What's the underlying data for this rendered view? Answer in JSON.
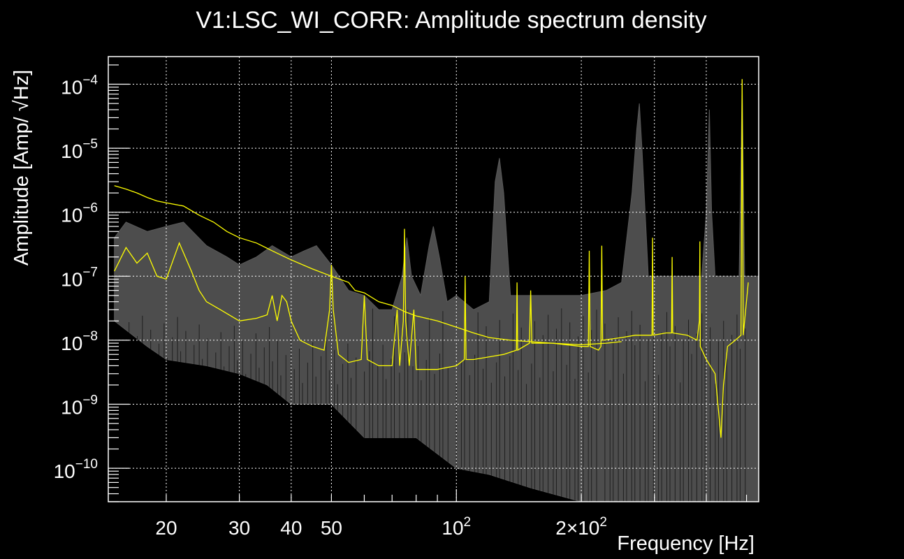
{
  "chart_data": {
    "type": "line",
    "title": "V1:LSC_WI_CORR: Amplitude spectrum density",
    "xlabel": "Frequency [Hz]",
    "ylabel": "Amplitude [Amp/ √Hz]",
    "xscale": "log",
    "yscale": "log",
    "xlim": [
      14.5,
      535
    ],
    "ylim": [
      3e-11,
      0.00027
    ],
    "grid": true,
    "background": "#000000",
    "xticks": [
      {
        "value": 20,
        "label": "20",
        "exp": ""
      },
      {
        "value": 30,
        "label": "30",
        "exp": ""
      },
      {
        "value": 40,
        "label": "40",
        "exp": ""
      },
      {
        "value": 50,
        "label": "50",
        "exp": ""
      },
      {
        "value": 100,
        "label": "10",
        "exp": "2"
      },
      {
        "value": 200,
        "label": "2×10",
        "exp": "2"
      }
    ],
    "yticks": [
      {
        "value": 0.0001,
        "label": "10",
        "exp": "−4"
      },
      {
        "value": 1e-05,
        "label": "10",
        "exp": "−5"
      },
      {
        "value": 1e-06,
        "label": "10",
        "exp": "−6"
      },
      {
        "value": 1e-07,
        "label": "10",
        "exp": "−7"
      },
      {
        "value": 1e-08,
        "label": "10",
        "exp": "−8"
      },
      {
        "value": 1e-09,
        "label": "10",
        "exp": "−9"
      },
      {
        "value": 1e-10,
        "label": "10",
        "exp": "−10"
      }
    ],
    "history_band": {
      "color": "#4d4d4d",
      "upper": [
        [
          15,
          4e-07
        ],
        [
          16,
          7e-07
        ],
        [
          18,
          5e-07
        ],
        [
          20,
          6e-07
        ],
        [
          22,
          7e-07
        ],
        [
          25,
          3e-07
        ],
        [
          28,
          2e-07
        ],
        [
          30,
          1.5e-07
        ],
        [
          33,
          2e-07
        ],
        [
          36,
          3e-07
        ],
        [
          40,
          2e-07
        ],
        [
          43,
          2.5e-07
        ],
        [
          46,
          3e-07
        ],
        [
          50,
          1.5e-07
        ],
        [
          55,
          6e-08
        ],
        [
          60,
          5e-08
        ],
        [
          65,
          3e-08
        ],
        [
          70,
          3e-08
        ],
        [
          74,
          1e-07
        ],
        [
          76,
          4e-07
        ],
        [
          78,
          1e-07
        ],
        [
          82,
          5e-08
        ],
        [
          86,
          3e-07
        ],
        [
          88,
          6e-07
        ],
        [
          91,
          2e-07
        ],
        [
          95,
          4e-08
        ],
        [
          100,
          5e-08
        ],
        [
          110,
          3e-08
        ],
        [
          120,
          4e-08
        ],
        [
          124,
          3e-06
        ],
        [
          127,
          7e-06
        ],
        [
          130,
          2e-06
        ],
        [
          135,
          5e-08
        ],
        [
          150,
          5e-08
        ],
        [
          180,
          5e-08
        ],
        [
          200,
          5e-08
        ],
        [
          230,
          6e-08
        ],
        [
          250,
          8e-08
        ],
        [
          265,
          2e-06
        ],
        [
          272,
          2e-05
        ],
        [
          276,
          5e-05
        ],
        [
          280,
          1e-05
        ],
        [
          290,
          1e-07
        ],
        [
          350,
          1e-07
        ],
        [
          390,
          1e-07
        ],
        [
          400,
          1e-06
        ],
        [
          407,
          4e-05
        ],
        [
          412,
          1e-06
        ],
        [
          420,
          1e-07
        ],
        [
          450,
          1e-07
        ],
        [
          480,
          1e-07
        ],
        [
          488,
          0.00012
        ],
        [
          495,
          1e-07
        ],
        [
          520,
          1e-07
        ],
        [
          535,
          1e-07
        ]
      ],
      "lower": [
        [
          15,
          2e-08
        ],
        [
          18,
          8e-09
        ],
        [
          20,
          5e-09
        ],
        [
          25,
          4e-09
        ],
        [
          30,
          3e-09
        ],
        [
          35,
          2e-09
        ],
        [
          40,
          1e-09
        ],
        [
          50,
          1e-09
        ],
        [
          60,
          3e-10
        ],
        [
          80,
          3e-10
        ],
        [
          100,
          1e-10
        ],
        [
          120,
          8e-11
        ],
        [
          150,
          5e-11
        ],
        [
          200,
          3e-11
        ],
        [
          535,
          3e-11
        ]
      ]
    },
    "reference_trace": {
      "color": "#ffff00",
      "points": [
        [
          15,
          2.6e-06
        ],
        [
          16,
          2.3e-06
        ],
        [
          17,
          2e-06
        ],
        [
          18,
          1.7e-06
        ],
        [
          19,
          1.5e-06
        ],
        [
          20,
          1.4e-06
        ],
        [
          22,
          1.25e-06
        ],
        [
          24,
          9e-07
        ],
        [
          26,
          7e-07
        ],
        [
          28,
          5e-07
        ],
        [
          30,
          4e-07
        ],
        [
          33,
          3.3e-07
        ],
        [
          36,
          2.5e-07
        ],
        [
          40,
          1.8e-07
        ],
        [
          45,
          1.3e-07
        ],
        [
          50,
          1e-07
        ],
        [
          55,
          8e-08
        ],
        [
          57,
          6e-08
        ],
        [
          60,
          5.5e-08
        ],
        [
          65,
          4e-08
        ],
        [
          70,
          3.5e-08
        ],
        [
          75,
          2.8e-08
        ],
        [
          80,
          2.4e-08
        ],
        [
          90,
          2e-08
        ],
        [
          100,
          1.6e-08
        ],
        [
          110,
          1.3e-08
        ],
        [
          120,
          1.1e-08
        ],
        [
          135,
          1e-08
        ],
        [
          150,
          9.5e-09
        ],
        [
          170,
          9e-09
        ],
        [
          200,
          8.5e-09
        ],
        [
          230,
          9e-09
        ],
        [
          250,
          9.5e-09
        ]
      ]
    },
    "current_trace": {
      "color": "#ffff00",
      "points": [
        [
          15,
          1.2e-07
        ],
        [
          16,
          2.8e-07
        ],
        [
          17,
          1.6e-07
        ],
        [
          18,
          2.3e-07
        ],
        [
          19,
          1e-07
        ],
        [
          20,
          9e-08
        ],
        [
          21.5,
          3.3e-07
        ],
        [
          23,
          1.2e-07
        ],
        [
          24,
          6e-08
        ],
        [
          25,
          4e-08
        ],
        [
          27,
          3e-08
        ],
        [
          30,
          2e-08
        ],
        [
          33,
          2.2e-08
        ],
        [
          35,
          2.5e-08
        ],
        [
          36,
          5e-08
        ],
        [
          37,
          2e-08
        ],
        [
          38,
          5e-08
        ],
        [
          39,
          4e-08
        ],
        [
          40,
          2e-08
        ],
        [
          42,
          1e-08
        ],
        [
          45,
          8e-09
        ],
        [
          48,
          7e-09
        ],
        [
          49.5,
          3e-08
        ],
        [
          50,
          1.5e-07
        ],
        [
          50.5,
          3e-08
        ],
        [
          52,
          6e-09
        ],
        [
          55,
          4.5e-09
        ],
        [
          59,
          5e-09
        ],
        [
          60,
          5e-08
        ],
        [
          61,
          5e-09
        ],
        [
          65,
          4e-09
        ],
        [
          70,
          4e-09
        ],
        [
          72,
          3e-08
        ],
        [
          73,
          4e-09
        ],
        [
          74.5,
          2e-08
        ],
        [
          75,
          5.5e-07
        ],
        [
          75.5,
          2e-08
        ],
        [
          77,
          4e-09
        ],
        [
          79,
          3e-08
        ],
        [
          80,
          3.5e-09
        ],
        [
          85,
          3.5e-09
        ],
        [
          90,
          3.5e-09
        ],
        [
          100,
          4e-09
        ],
        [
          104.5,
          5e-09
        ],
        [
          105,
          1e-07
        ],
        [
          105.5,
          5e-09
        ],
        [
          110,
          5e-09
        ],
        [
          130,
          6e-09
        ],
        [
          139.5,
          7e-09
        ],
        [
          140,
          8e-08
        ],
        [
          140.5,
          7e-09
        ],
        [
          150,
          9e-09
        ],
        [
          151,
          6e-08
        ],
        [
          152,
          9e-09
        ],
        [
          170,
          9e-09
        ],
        [
          200,
          8e-09
        ],
        [
          208,
          8e-09
        ],
        [
          209,
          2.5e-07
        ],
        [
          210,
          8e-09
        ],
        [
          220,
          7e-09
        ],
        [
          223,
          8e-09
        ],
        [
          224,
          3e-07
        ],
        [
          225,
          1e-08
        ],
        [
          250,
          1.1e-08
        ],
        [
          270,
          1.2e-08
        ],
        [
          296,
          1.2e-08
        ],
        [
          297,
          4e-07
        ],
        [
          298,
          1.2e-08
        ],
        [
          320,
          1.3e-08
        ],
        [
          330,
          1.3e-08
        ],
        [
          331,
          2e-07
        ],
        [
          332,
          1.3e-08
        ],
        [
          360,
          1.2e-08
        ],
        [
          380,
          1e-08
        ],
        [
          385,
          2e-08
        ],
        [
          386,
          3.5e-07
        ],
        [
          387,
          8e-09
        ],
        [
          400,
          5e-09
        ],
        [
          420,
          3e-09
        ],
        [
          434,
          3e-10
        ],
        [
          440,
          2e-09
        ],
        [
          450,
          8e-09
        ],
        [
          470,
          1e-08
        ],
        [
          485,
          1.2e-08
        ],
        [
          488,
          0.00012
        ],
        [
          491,
          1.2e-08
        ],
        [
          505,
          8e-08
        ]
      ]
    }
  }
}
